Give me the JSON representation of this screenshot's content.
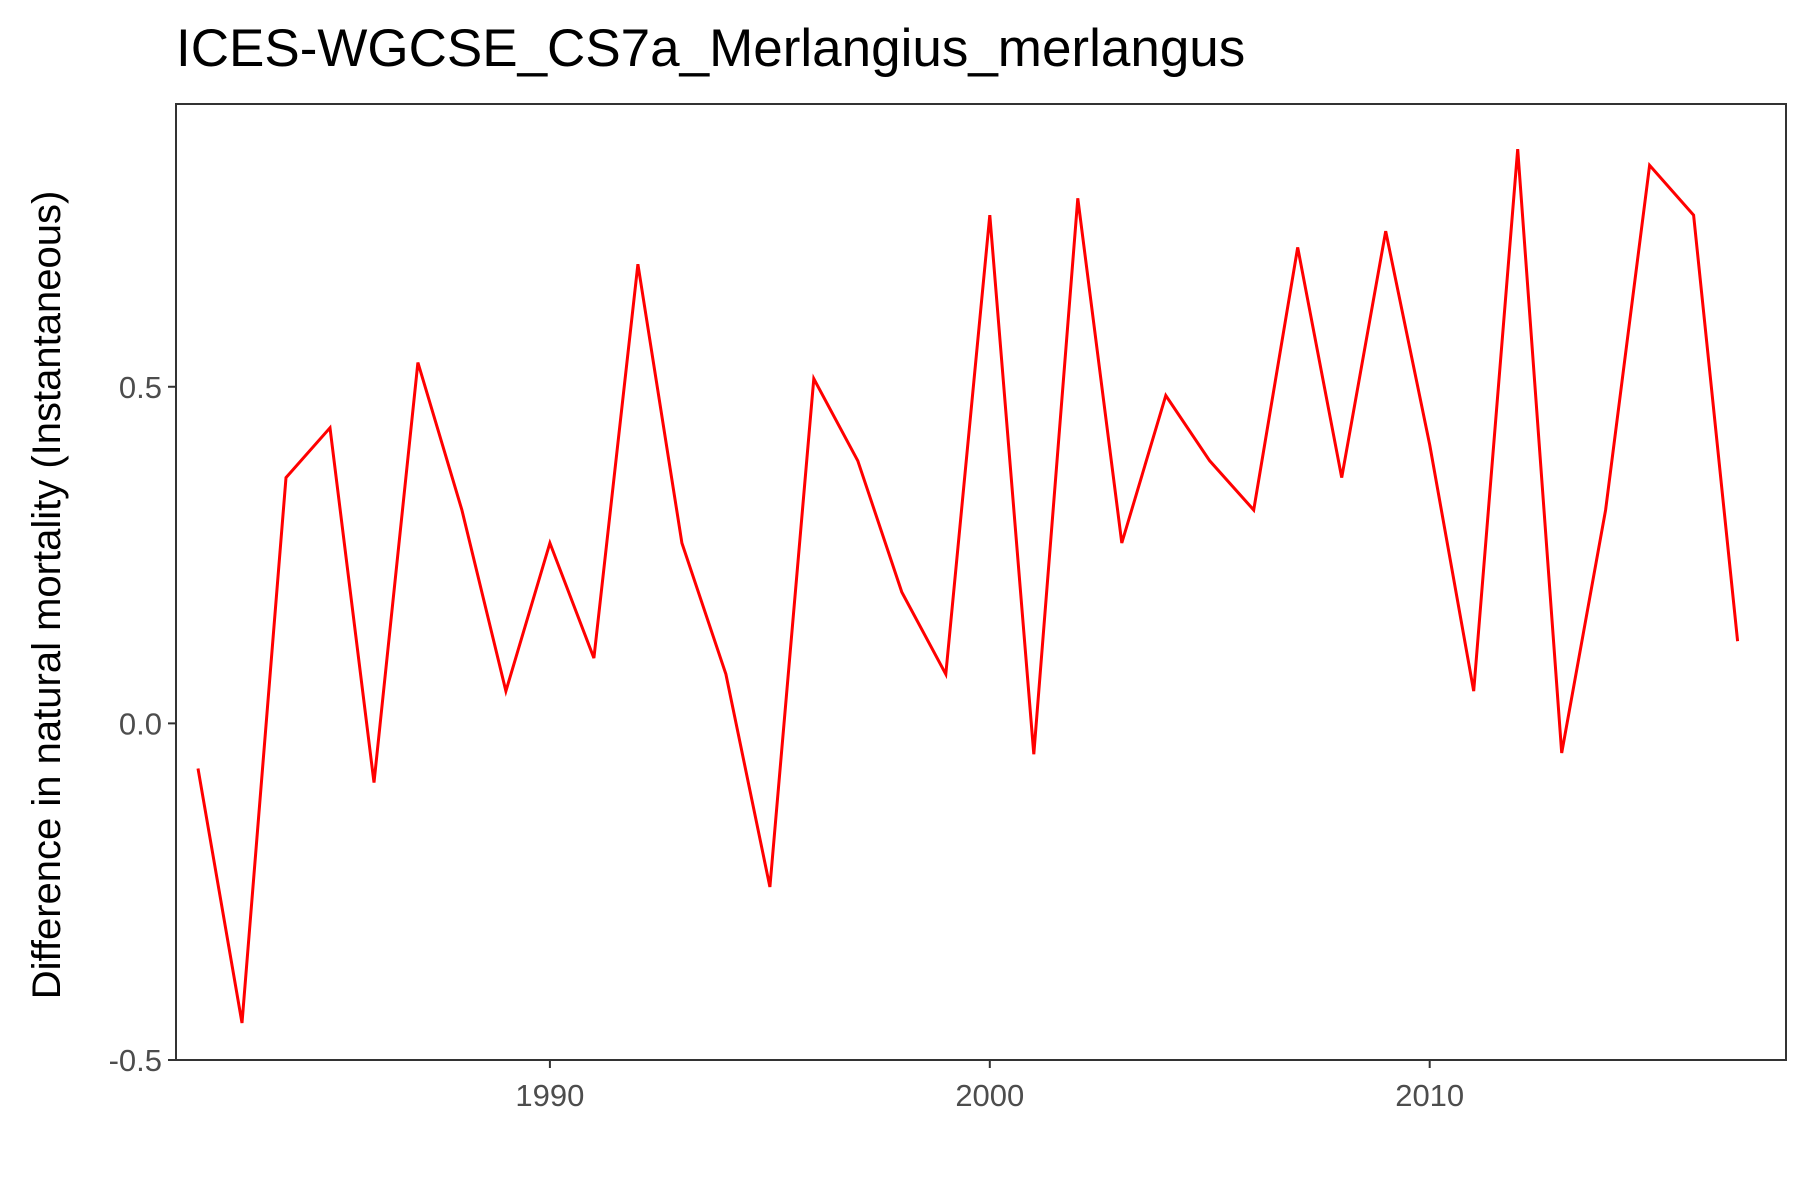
{
  "chart_data": {
    "type": "line",
    "title": "ICES-WGCSE_CS7a_Merlangius_merlangus",
    "xlabel": "",
    "ylabel": "Difference in natural mortality (Instantaneous)",
    "xlim": [
      1981.5,
      2018.1
    ],
    "ylim": [
      -0.5,
      0.92
    ],
    "x_ticks": [
      1990,
      2000,
      2010
    ],
    "x_tick_labels": [
      "1990",
      "2000",
      "2010"
    ],
    "y_ticks": [
      -0.5,
      0.0,
      0.5
    ],
    "y_tick_labels": [
      "-0.5",
      "0.0",
      "0.5"
    ],
    "grid": false,
    "series": [
      {
        "color": "#ff0000",
        "x": [
          1982,
          1983,
          1984,
          1985,
          1986,
          1987,
          1988,
          1989,
          1990,
          1991,
          1992,
          1993,
          1994,
          1995,
          1996,
          1997,
          1998,
          1999,
          2000,
          2001,
          2002,
          2003,
          2004,
          2005,
          2006,
          2007,
          2008,
          2009,
          2010,
          2011,
          2012,
          2013,
          2014,
          2015,
          2016,
          2017
        ],
        "y": [
          -0.067,
          -0.445,
          0.365,
          0.439,
          -0.088,
          0.536,
          0.317,
          0.048,
          0.268,
          0.097,
          0.682,
          0.268,
          0.073,
          -0.243,
          0.512,
          0.39,
          0.195,
          0.073,
          0.755,
          -0.046,
          0.78,
          0.268,
          0.487,
          0.39,
          0.317,
          0.707,
          0.365,
          0.731,
          0.414,
          0.048,
          0.853,
          -0.044,
          0.317,
          0.829,
          0.755,
          0.122
        ]
      }
    ]
  }
}
